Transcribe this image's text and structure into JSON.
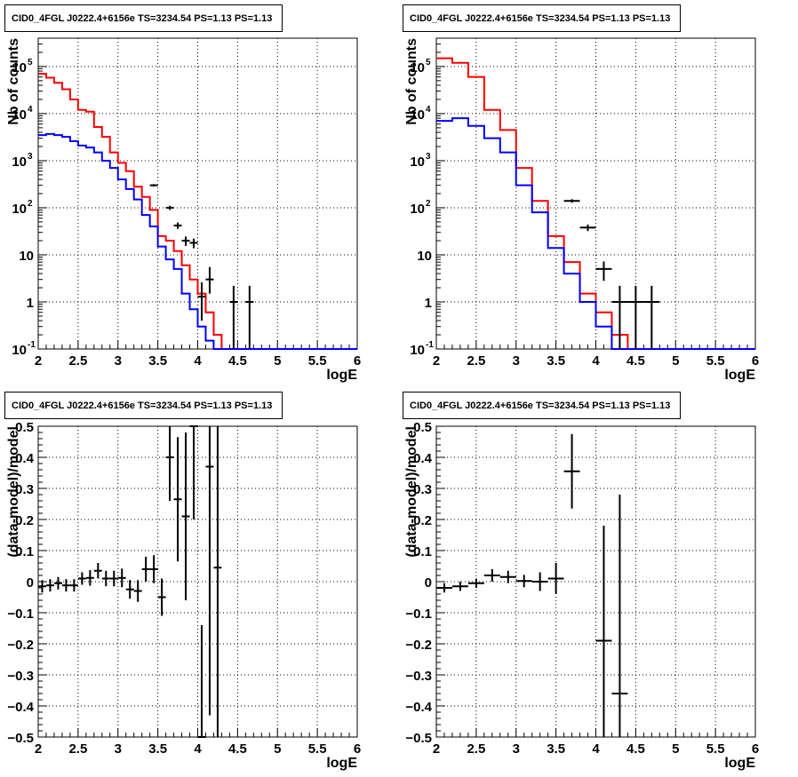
{
  "chart_data": [
    {
      "type": "line",
      "title": "CID0_4FGL J0222.4+6156e TS=3234.54 PS=1.13 PS=1.13",
      "xlabel": "logE",
      "ylabel": "Nb of counts",
      "yscale": "log",
      "xlim": [
        2,
        6
      ],
      "ylim": [
        0.1,
        400000
      ],
      "grid": true,
      "x_ticks": [
        "2",
        "2.5",
        "3",
        "3.5",
        "4",
        "4.5",
        "5",
        "5.5",
        "6"
      ],
      "y_ticks": [
        "10^-1",
        "1",
        "10",
        "10^2",
        "10^3",
        "10^4",
        "10^5"
      ],
      "bin_edges": [
        2.0,
        2.1,
        2.2,
        2.3,
        2.4,
        2.5,
        2.6,
        2.7,
        2.8,
        2.9,
        3.0,
        3.1,
        3.2,
        3.3,
        3.4,
        3.5,
        3.6,
        3.7,
        3.8,
        3.9,
        4.0,
        4.1,
        4.2,
        4.3,
        4.4,
        4.5,
        4.6,
        4.7,
        4.8,
        4.9,
        5.0,
        5.1,
        5.2,
        5.3,
        5.4,
        5.5,
        5.6,
        5.7,
        5.8,
        5.9,
        6.0
      ],
      "series": [
        {
          "color": "#ff0000",
          "style": "step",
          "values": [
            70000,
            58000,
            45000,
            33000,
            20000,
            12000,
            11000,
            5200,
            3200,
            1500,
            900,
            600,
            280,
            170,
            90,
            25,
            20,
            12,
            6,
            3,
            1.5,
            0.6,
            0.2,
            0.1,
            0.1,
            0.1,
            0.1,
            0.1,
            0.1,
            0.1,
            0.1,
            0.1,
            0.1,
            0.1,
            0.1,
            0.1,
            0.1,
            0.1,
            0.1,
            0.1
          ]
        },
        {
          "color": "#0000ff",
          "style": "step",
          "values": [
            3500,
            3700,
            3500,
            3200,
            2600,
            2100,
            1900,
            1500,
            1000,
            700,
            400,
            250,
            150,
            70,
            40,
            15,
            8,
            5,
            1.5,
            0.7,
            0.3,
            0.15,
            0.1,
            0.1,
            0.1,
            0.1,
            0.1,
            0.1,
            0.1,
            0.1,
            0.1,
            0.1,
            0.1,
            0.1,
            0.1,
            0.1,
            0.1,
            0.1,
            0.1,
            0.1
          ]
        }
      ],
      "points": {
        "color": "#000000",
        "x": [
          3.45,
          3.65,
          3.75,
          3.85,
          3.95,
          4.05,
          4.15,
          4.45,
          4.65
        ],
        "y": [
          300,
          100,
          42,
          20,
          18,
          1.3,
          3,
          1,
          1
        ],
        "yerr_low": [
          18,
          10,
          6.5,
          4.5,
          4.2,
          0.9,
          1.5,
          0.9,
          0.9
        ],
        "yerr_high": [
          18,
          10,
          6.5,
          4.5,
          4.2,
          1.3,
          2.5,
          1.2,
          1.2
        ],
        "xerr": 0.05
      }
    },
    {
      "type": "line",
      "title": "CID0_4FGL J0222.4+6156e TS=3234.54 PS=1.13 PS=1.13",
      "xlabel": "logE",
      "ylabel": "Nb of counts",
      "yscale": "log",
      "xlim": [
        2,
        6
      ],
      "ylim": [
        0.1,
        400000
      ],
      "grid": true,
      "x_ticks": [
        "2",
        "2.5",
        "3",
        "3.5",
        "4",
        "4.5",
        "5",
        "5.5",
        "6"
      ],
      "y_ticks": [
        "10^-1",
        "1",
        "10",
        "10^2",
        "10^3",
        "10^4",
        "10^5"
      ],
      "bin_edges": [
        2.0,
        2.2,
        2.4,
        2.6,
        2.8,
        3.0,
        3.2,
        3.4,
        3.6,
        3.8,
        4.0,
        4.2,
        4.4,
        4.6,
        4.8,
        5.0,
        5.2,
        5.4,
        5.6,
        5.8,
        6.0
      ],
      "series": [
        {
          "color": "#ff0000",
          "style": "step",
          "values": [
            150000,
            120000,
            60000,
            12000,
            4500,
            700,
            140,
            25,
            7,
            1.5,
            0.6,
            0.2,
            0.1,
            0.1,
            0.1,
            0.1,
            0.1,
            0.1,
            0.1,
            0.1
          ]
        },
        {
          "color": "#0000ff",
          "style": "step",
          "values": [
            7000,
            8000,
            5500,
            3000,
            1500,
            300,
            80,
            14,
            4,
            1,
            0.3,
            0.1,
            0.1,
            0.1,
            0.1,
            0.1,
            0.1,
            0.1,
            0.1,
            0.1
          ]
        }
      ],
      "points": {
        "color": "#000000",
        "x": [
          3.7,
          3.9,
          4.1,
          4.3,
          4.5,
          4.7
        ],
        "y": [
          140,
          38,
          5,
          1,
          1,
          1
        ],
        "yerr_low": [
          12,
          6,
          2.2,
          0.9,
          0.9,
          0.9
        ],
        "yerr_high": [
          12,
          6,
          2.2,
          1.2,
          1.2,
          1.2
        ],
        "xerr": 0.1
      }
    },
    {
      "type": "scatter",
      "title": "CID0_4FGL J0222.4+6156e TS=3234.54 PS=1.13 PS=1.13",
      "xlabel": "logE",
      "ylabel": "(data-model)/model",
      "yscale": "linear",
      "xlim": [
        2,
        6
      ],
      "ylim": [
        -0.5,
        0.5
      ],
      "grid": true,
      "x_ticks": [
        "2",
        "2.5",
        "3",
        "3.5",
        "4",
        "4.5",
        "5",
        "5.5",
        "6"
      ],
      "y_ticks": [
        "-0.5",
        "-0.4",
        "-0.3",
        "-0.2",
        "-0.1",
        "0",
        "0.1",
        "0.2",
        "0.3",
        "0.4",
        "0.5"
      ],
      "points": {
        "color": "#000000",
        "x": [
          2.05,
          2.15,
          2.25,
          2.35,
          2.45,
          2.55,
          2.65,
          2.75,
          2.85,
          2.95,
          3.05,
          3.15,
          3.25,
          3.35,
          3.45,
          3.55,
          3.65,
          3.75,
          3.85,
          3.95,
          4.05,
          4.15,
          4.25
        ],
        "y": [
          -0.015,
          -0.012,
          -0.005,
          -0.012,
          -0.012,
          0.01,
          0.012,
          0.035,
          0.01,
          0.01,
          0.012,
          -0.025,
          -0.03,
          0.04,
          0.04,
          -0.05,
          0.4,
          0.265,
          0.21,
          0.5,
          -0.5,
          0.37,
          0.045
        ],
        "yerr": [
          0.02,
          0.02,
          0.02,
          0.02,
          0.02,
          0.02,
          0.025,
          0.025,
          0.025,
          0.025,
          0.03,
          0.03,
          0.035,
          0.04,
          0.045,
          0.06,
          0.14,
          0.2,
          0.27,
          0.3,
          0.36,
          0.8,
          0.9
        ],
        "xerr": 0.05
      }
    },
    {
      "type": "scatter",
      "title": "CID0_4FGL J0222.4+6156e TS=3234.54 PS=1.13 PS=1.13",
      "xlabel": "logE",
      "ylabel": "(data-model)/model",
      "yscale": "linear",
      "xlim": [
        2,
        6
      ],
      "ylim": [
        -0.5,
        0.5
      ],
      "grid": true,
      "x_ticks": [
        "2",
        "2.5",
        "3",
        "3.5",
        "4",
        "4.5",
        "5",
        "5.5",
        "6"
      ],
      "y_ticks": [
        "-0.5",
        "-0.4",
        "-0.3",
        "-0.2",
        "-0.1",
        "0",
        "0.1",
        "0.2",
        "0.3",
        "0.4",
        "0.5"
      ],
      "points": {
        "color": "#000000",
        "x": [
          2.1,
          2.3,
          2.5,
          2.7,
          2.9,
          3.1,
          3.3,
          3.5,
          3.7,
          4.1,
          4.3
        ],
        "y": [
          -0.02,
          -0.015,
          -0.005,
          0.02,
          0.015,
          0.002,
          0.0,
          0.01,
          0.355,
          -0.19,
          -0.36
        ],
        "yerr": [
          0.015,
          0.015,
          0.015,
          0.02,
          0.02,
          0.02,
          0.03,
          0.05,
          0.12,
          0.37,
          0.64
        ],
        "xerr": 0.1
      }
    }
  ]
}
